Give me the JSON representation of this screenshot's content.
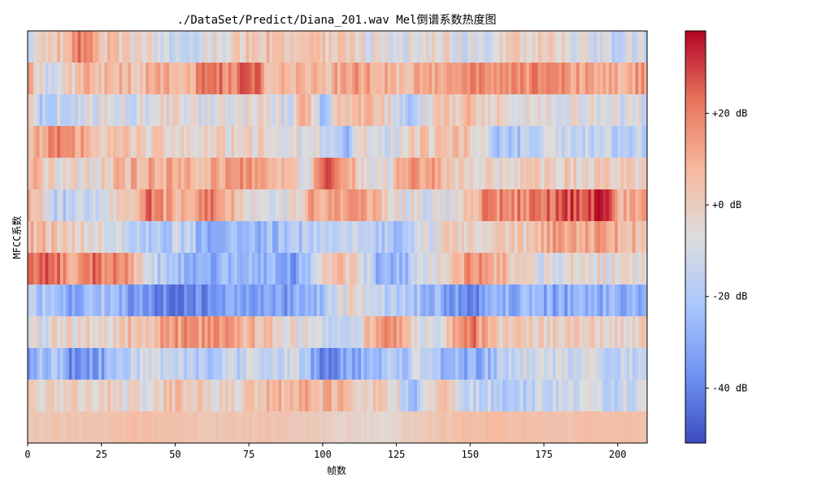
{
  "chart_data": {
    "type": "heatmap",
    "title": "./DataSet/Predict/Diana_201.wav Mel倒谱系数热度图",
    "xlabel": "帧数",
    "ylabel": "MFCC系数",
    "xlim": [
      0,
      210
    ],
    "x_ticks": [
      0,
      25,
      50,
      75,
      100,
      125,
      150,
      175,
      200
    ],
    "rows": 13,
    "frames": 210,
    "colormap": "coolwarm",
    "color_range": [
      -52,
      38
    ],
    "colorbar": {
      "ticks": [
        20,
        0,
        -20,
        -40
      ],
      "tick_labels": [
        "+20 dB",
        "+0 dB",
        "-20 dB",
        "-40 dB"
      ],
      "colors": [
        "#3b4cc0",
        "#7093f3",
        "#aac7fd",
        "#dddddd",
        "#f7b89c",
        "#e7745b",
        "#b40426"
      ]
    },
    "row_profiles": [
      [
        [
          0,
          -8
        ],
        [
          15,
          8
        ],
        [
          18,
          22
        ],
        [
          25,
          6
        ],
        [
          40,
          -6
        ],
        [
          55,
          -14
        ],
        [
          70,
          0
        ],
        [
          90,
          6
        ],
        [
          110,
          -4
        ],
        [
          125,
          -10
        ],
        [
          140,
          -4
        ],
        [
          150,
          -10
        ],
        [
          170,
          0
        ],
        [
          200,
          -14
        ],
        [
          210,
          -10
        ]
      ],
      [
        [
          0,
          12
        ],
        [
          5,
          -10
        ],
        [
          20,
          6
        ],
        [
          40,
          6
        ],
        [
          55,
          12
        ],
        [
          60,
          18
        ],
        [
          72,
          22
        ],
        [
          78,
          30
        ],
        [
          82,
          6
        ],
        [
          100,
          6
        ],
        [
          110,
          16
        ],
        [
          125,
          8
        ],
        [
          140,
          10
        ],
        [
          150,
          18
        ],
        [
          175,
          16
        ],
        [
          200,
          12
        ],
        [
          210,
          14
        ]
      ],
      [
        [
          0,
          -6
        ],
        [
          5,
          -18
        ],
        [
          20,
          -8
        ],
        [
          35,
          -10
        ],
        [
          50,
          -2
        ],
        [
          60,
          -10
        ],
        [
          80,
          -4
        ],
        [
          90,
          -14
        ],
        [
          92,
          18
        ],
        [
          95,
          4
        ],
        [
          100,
          -24
        ],
        [
          105,
          0
        ],
        [
          120,
          4
        ],
        [
          130,
          -30
        ],
        [
          135,
          -4
        ],
        [
          150,
          6
        ],
        [
          165,
          -6
        ],
        [
          190,
          -6
        ],
        [
          200,
          -10
        ],
        [
          210,
          -10
        ]
      ],
      [
        [
          0,
          0
        ],
        [
          5,
          14
        ],
        [
          10,
          22
        ],
        [
          15,
          20
        ],
        [
          20,
          6
        ],
        [
          40,
          0
        ],
        [
          60,
          -2
        ],
        [
          80,
          -2
        ],
        [
          100,
          -10
        ],
        [
          108,
          -30
        ],
        [
          112,
          -4
        ],
        [
          120,
          -14
        ],
        [
          130,
          0
        ],
        [
          150,
          4
        ],
        [
          160,
          -22
        ],
        [
          170,
          -18
        ],
        [
          180,
          -12
        ],
        [
          200,
          -16
        ],
        [
          210,
          -14
        ]
      ],
      [
        [
          0,
          12
        ],
        [
          5,
          4
        ],
        [
          10,
          -6
        ],
        [
          20,
          -4
        ],
        [
          40,
          12
        ],
        [
          60,
          6
        ],
        [
          75,
          20
        ],
        [
          85,
          4
        ],
        [
          95,
          -6
        ],
        [
          100,
          22
        ],
        [
          105,
          26
        ],
        [
          110,
          6
        ],
        [
          120,
          -10
        ],
        [
          130,
          18
        ],
        [
          140,
          8
        ],
        [
          150,
          -4
        ],
        [
          170,
          0
        ],
        [
          200,
          0
        ],
        [
          210,
          -4
        ]
      ],
      [
        [
          0,
          12
        ],
        [
          10,
          -18
        ],
        [
          25,
          -10
        ],
        [
          35,
          4
        ],
        [
          42,
          22
        ],
        [
          50,
          6
        ],
        [
          60,
          22
        ],
        [
          65,
          16
        ],
        [
          75,
          -4
        ],
        [
          90,
          -10
        ],
        [
          95,
          14
        ],
        [
          110,
          14
        ],
        [
          125,
          -4
        ],
        [
          140,
          -12
        ],
        [
          150,
          6
        ],
        [
          155,
          16
        ],
        [
          170,
          18
        ],
        [
          180,
          26
        ],
        [
          190,
          30
        ],
        [
          197,
          34
        ],
        [
          200,
          6
        ],
        [
          210,
          12
        ]
      ],
      [
        [
          0,
          8
        ],
        [
          20,
          -4
        ],
        [
          30,
          -10
        ],
        [
          40,
          -20
        ],
        [
          55,
          -16
        ],
        [
          60,
          -32
        ],
        [
          75,
          -26
        ],
        [
          90,
          -24
        ],
        [
          105,
          -12
        ],
        [
          125,
          -24
        ],
        [
          140,
          -4
        ],
        [
          150,
          -2
        ],
        [
          170,
          0
        ],
        [
          180,
          16
        ],
        [
          200,
          10
        ],
        [
          210,
          6
        ]
      ],
      [
        [
          0,
          28
        ],
        [
          15,
          16
        ],
        [
          25,
          22
        ],
        [
          35,
          12
        ],
        [
          45,
          -20
        ],
        [
          55,
          -26
        ],
        [
          60,
          -28
        ],
        [
          80,
          -26
        ],
        [
          90,
          -34
        ],
        [
          105,
          8
        ],
        [
          115,
          -12
        ],
        [
          120,
          -34
        ],
        [
          130,
          -20
        ],
        [
          140,
          -4
        ],
        [
          150,
          16
        ],
        [
          160,
          8
        ],
        [
          175,
          -10
        ],
        [
          185,
          -4
        ],
        [
          200,
          -6
        ],
        [
          210,
          -8
        ]
      ],
      [
        [
          0,
          -20
        ],
        [
          10,
          -22
        ],
        [
          15,
          -30
        ],
        [
          25,
          -22
        ],
        [
          40,
          -38
        ],
        [
          50,
          -42
        ],
        [
          65,
          -34
        ],
        [
          80,
          -36
        ],
        [
          95,
          -30
        ],
        [
          110,
          -4
        ],
        [
          120,
          -18
        ],
        [
          135,
          -24
        ],
        [
          150,
          -38
        ],
        [
          160,
          -30
        ],
        [
          170,
          -28
        ],
        [
          185,
          -32
        ],
        [
          200,
          -28
        ],
        [
          210,
          -28
        ]
      ],
      [
        [
          0,
          -10
        ],
        [
          15,
          -2
        ],
        [
          30,
          0
        ],
        [
          40,
          8
        ],
        [
          55,
          16
        ],
        [
          70,
          12
        ],
        [
          90,
          -6
        ],
        [
          110,
          -14
        ],
        [
          120,
          20
        ],
        [
          125,
          14
        ],
        [
          130,
          -2
        ],
        [
          140,
          -10
        ],
        [
          145,
          18
        ],
        [
          150,
          22
        ],
        [
          160,
          0
        ],
        [
          180,
          -2
        ],
        [
          200,
          0
        ],
        [
          210,
          0
        ]
      ],
      [
        [
          0,
          -32
        ],
        [
          10,
          -16
        ],
        [
          15,
          -40
        ],
        [
          30,
          -26
        ],
        [
          40,
          -8
        ],
        [
          55,
          -22
        ],
        [
          70,
          -16
        ],
        [
          90,
          -10
        ],
        [
          100,
          -38
        ],
        [
          115,
          -28
        ],
        [
          125,
          -20
        ],
        [
          135,
          -14
        ],
        [
          140,
          -24
        ],
        [
          150,
          -32
        ],
        [
          165,
          -12
        ],
        [
          185,
          -10
        ],
        [
          200,
          -14
        ],
        [
          210,
          -14
        ]
      ],
      [
        [
          0,
          -2
        ],
        [
          20,
          2
        ],
        [
          40,
          -6
        ],
        [
          50,
          4
        ],
        [
          70,
          -4
        ],
        [
          90,
          10
        ],
        [
          110,
          6
        ],
        [
          125,
          -2
        ],
        [
          130,
          -30
        ],
        [
          140,
          6
        ],
        [
          150,
          -14
        ],
        [
          165,
          -18
        ],
        [
          180,
          -10
        ],
        [
          200,
          -14
        ],
        [
          210,
          -8
        ]
      ],
      [
        [
          0,
          2
        ],
        [
          20,
          4
        ],
        [
          40,
          6
        ],
        [
          60,
          2
        ],
        [
          80,
          4
        ],
        [
          100,
          0
        ],
        [
          120,
          -4
        ],
        [
          140,
          4
        ],
        [
          160,
          6
        ],
        [
          180,
          4
        ],
        [
          200,
          6
        ],
        [
          210,
          4
        ]
      ]
    ]
  }
}
